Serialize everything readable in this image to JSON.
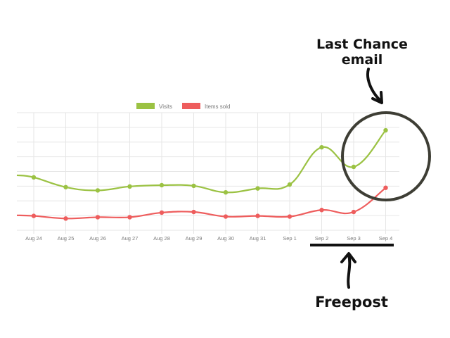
{
  "annotations": {
    "top_line1": "Last Chance",
    "top_line2": "email",
    "bottom": "Freepost"
  },
  "colors": {
    "visits": "#9bc243",
    "items_sold": "#ee5d5d",
    "grid": "#e6e6e6",
    "tick_text": "#7a7a7a",
    "annotation": "#111111",
    "circle": "#3e3e35"
  },
  "chart_data": {
    "type": "line",
    "title": "",
    "xlabel": "",
    "ylabel": "",
    "categories": [
      "Aug 24",
      "Aug 25",
      "Aug 26",
      "Aug 27",
      "Aug 28",
      "Aug 29",
      "Aug 30",
      "Aug 31",
      "Sep 1",
      "Sep 2",
      "Sep 3",
      "Sep 4"
    ],
    "series": [
      {
        "name": "Visits",
        "values": [
          81,
          66,
          61,
          67,
          69,
          68,
          58,
          64,
          70,
          127,
          97,
          153
        ]
      },
      {
        "name": "Items sold",
        "values": [
          22,
          18,
          20,
          20,
          27,
          28,
          21,
          22,
          21,
          31,
          28,
          65
        ]
      }
    ],
    "ylim": [
      0,
      180
    ],
    "grid": true,
    "legend_position": "top-center"
  }
}
